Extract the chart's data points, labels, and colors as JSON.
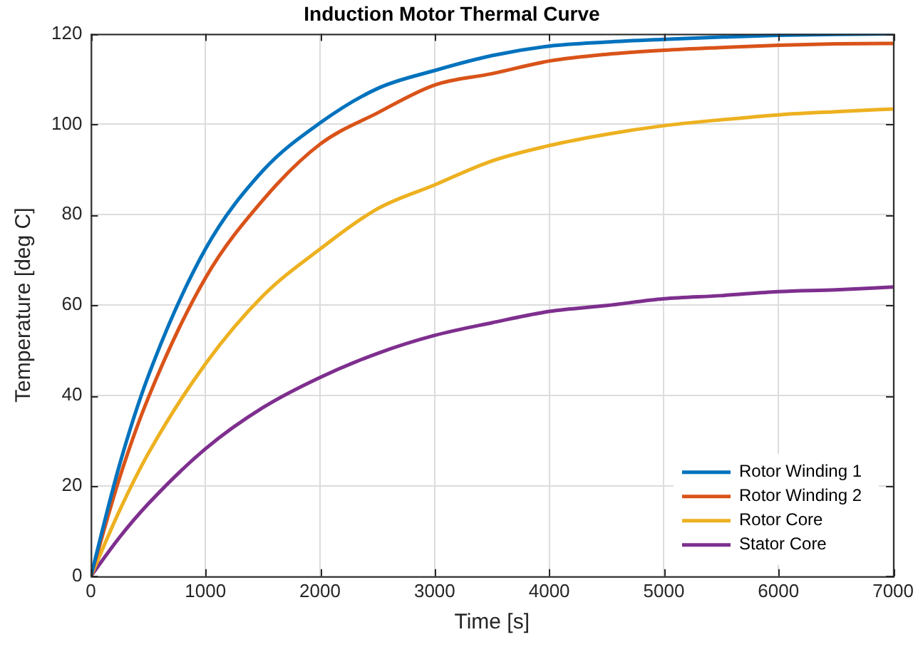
{
  "chart_data": {
    "type": "line",
    "title": "Induction Motor Thermal Curve",
    "xlabel": "Time [s]",
    "ylabel": "Temperature [deg C]",
    "x": [
      0,
      250,
      500,
      1000,
      1500,
      2000,
      2500,
      3000,
      3500,
      4000,
      4500,
      5000,
      5500,
      6000,
      6500,
      7000
    ],
    "series": [
      {
        "name": "Rotor Winding 1",
        "color": "#0072bd",
        "values": [
          0,
          24.6,
          44.2,
          72.4,
          89.7,
          100.3,
          107.9,
          111.9,
          115.2,
          117.3,
          118.2,
          118.8,
          119.3,
          119.7,
          119.9,
          120
        ]
      },
      {
        "name": "Rotor Winding 2",
        "color": "#d95319",
        "values": [
          0,
          21.7,
          39.4,
          66,
          83.2,
          95.6,
          102.5,
          108.7,
          111.2,
          114,
          115.5,
          116.4,
          117,
          117.5,
          117.8,
          117.9
        ]
      },
      {
        "name": "Rotor Core",
        "color": "#edb120",
        "values": [
          0,
          14.5,
          27.1,
          47,
          62,
          72.4,
          81.3,
          86.6,
          91.9,
          95.3,
          97.8,
          99.7,
          101,
          102.1,
          102.8,
          103.4
        ]
      },
      {
        "name": "Stator Core",
        "color": "#7e2f8e",
        "values": [
          0,
          8.6,
          16,
          28.2,
          37.3,
          44,
          49.3,
          53.3,
          56.1,
          58.6,
          59.9,
          61.4,
          62.1,
          63,
          63.4,
          64
        ]
      }
    ],
    "xlim": [
      0,
      7000
    ],
    "xticks": [
      0,
      1000,
      2000,
      3000,
      4000,
      5000,
      6000,
      7000
    ],
    "ylim": [
      0,
      120
    ],
    "yticks": [
      0,
      20,
      40,
      60,
      80,
      100,
      120
    ],
    "grid": true,
    "legend": "bottom right",
    "marker": "none",
    "line_style": "solid"
  }
}
